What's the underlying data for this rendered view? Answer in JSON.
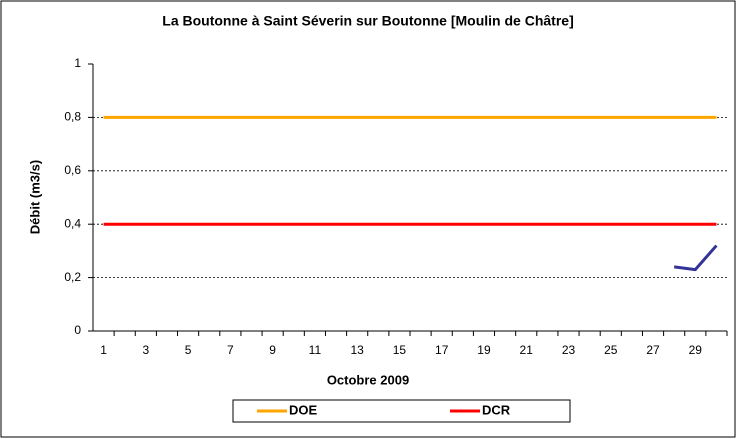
{
  "chart_data": {
    "type": "line",
    "title": "La Boutonne à Saint Séverin sur Boutonne [Moulin de Châtre]",
    "x_label": "Octobre 2009",
    "y_label": "Débit (m3/s)",
    "categories": [
      "1",
      null,
      "3",
      null,
      "5",
      null,
      "7",
      null,
      "9",
      null,
      "11",
      null,
      "13",
      null,
      "15",
      null,
      "17",
      null,
      "19",
      null,
      "21",
      null,
      "23",
      null,
      "25",
      null,
      "27",
      null,
      "29",
      null
    ],
    "series": [
      {
        "name": "DOE",
        "color": "#ffa500",
        "values": [
          0.8,
          0.8,
          0.8,
          0.8,
          0.8,
          0.8,
          0.8,
          0.8,
          0.8,
          0.8,
          0.8,
          0.8,
          0.8,
          0.8,
          0.8,
          0.8,
          0.8,
          0.8,
          0.8,
          0.8,
          0.8,
          0.8,
          0.8,
          0.8,
          0.8,
          0.8,
          0.8,
          0.8,
          0.8,
          0.8
        ]
      },
      {
        "name": "DCR",
        "color": "#ff0000",
        "values": [
          0.4,
          0.4,
          0.4,
          0.4,
          0.4,
          0.4,
          0.4,
          0.4,
          0.4,
          0.4,
          0.4,
          0.4,
          0.4,
          0.4,
          0.4,
          0.4,
          0.4,
          0.4,
          0.4,
          0.4,
          0.4,
          0.4,
          0.4,
          0.4,
          0.4,
          0.4,
          0.4,
          0.4,
          0.4,
          0.4
        ]
      },
      {
        "color": "#333399",
        "values": [
          null,
          null,
          null,
          null,
          null,
          null,
          null,
          null,
          null,
          null,
          null,
          null,
          null,
          null,
          null,
          null,
          null,
          null,
          null,
          null,
          null,
          null,
          null,
          null,
          null,
          null,
          null,
          0.24,
          0.23,
          0.32
        ]
      }
    ],
    "legend_series": [
      0,
      1
    ],
    "ylim": [
      0,
      1
    ],
    "yticks": [
      0,
      {
        "value": 0.2,
        "label": "0,2"
      },
      {
        "value": 0.4,
        "label": "0,4"
      },
      {
        "value": 0.6,
        "label": "0,6"
      },
      {
        "value": 0.8,
        "label": "0,8"
      },
      1
    ],
    "grid": true
  }
}
